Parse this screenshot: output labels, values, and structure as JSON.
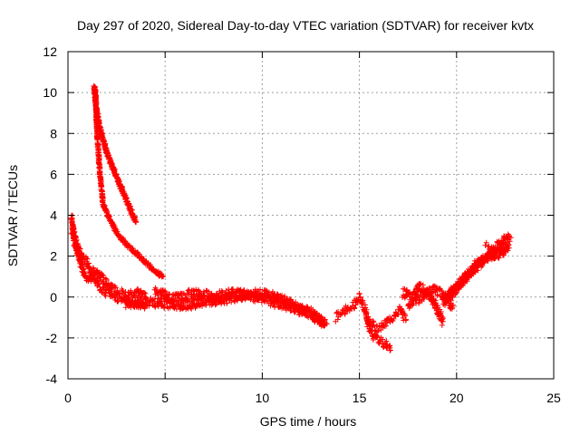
{
  "colors": {
    "series": "#ff0000",
    "grid": "#a0a0a0",
    "frame": "#000000",
    "background": "#ffffff"
  },
  "chart_data": {
    "type": "scatter",
    "title": "Day 297 of 2020, Sidereal Day-to-day VTEC variation (SDTVAR) for receiver kvtx",
    "xlabel": "GPS time / hours",
    "ylabel": "SDTVAR / TECUs",
    "xlim": [
      0,
      25
    ],
    "ylim": [
      -4,
      12
    ],
    "xticks": [
      0,
      5,
      10,
      15,
      20,
      25
    ],
    "yticks": [
      -4,
      -2,
      0,
      2,
      4,
      6,
      8,
      10,
      12
    ],
    "grid": true,
    "marker": "plus",
    "series": [
      {
        "name": "SDTVAR",
        "color": "#ff0000",
        "tracks": [
          {
            "jitter": 0.12,
            "density": 90,
            "points": [
              [
                1.35,
                10.3
              ],
              [
                1.45,
                9.3
              ],
              [
                1.6,
                8.5
              ],
              [
                1.8,
                7.7
              ],
              [
                2.1,
                6.8
              ],
              [
                2.45,
                6.0
              ],
              [
                2.85,
                5.1
              ],
              [
                3.2,
                4.3
              ],
              [
                3.5,
                3.7
              ]
            ]
          },
          {
            "jitter": 0.1,
            "density": 70,
            "points": [
              [
                1.4,
                10.2
              ],
              [
                1.5,
                8.0
              ],
              [
                1.65,
                6.0
              ],
              [
                1.8,
                4.6
              ],
              [
                2.1,
                3.9
              ],
              [
                2.6,
                3.0
              ],
              [
                3.2,
                2.4
              ],
              [
                3.8,
                1.9
              ],
              [
                4.4,
                1.3
              ],
              [
                4.9,
                1.0
              ]
            ]
          },
          {
            "jitter": 0.18,
            "density": 60,
            "points": [
              [
                0.2,
                4.0
              ],
              [
                0.3,
                2.8
              ],
              [
                0.5,
                2.1
              ],
              [
                0.7,
                1.5
              ],
              [
                0.9,
                1.0
              ],
              [
                1.1,
                0.85
              ],
              [
                1.3,
                1.3
              ],
              [
                1.6,
                1.1
              ],
              [
                2.0,
                0.65
              ],
              [
                2.5,
                0.3
              ],
              [
                3.1,
                0.1
              ],
              [
                3.6,
                0.25
              ],
              [
                4.0,
                0.0
              ]
            ]
          },
          {
            "jitter": 0.2,
            "density": 60,
            "points": [
              [
                0.2,
                3.3
              ],
              [
                0.45,
                2.6
              ],
              [
                0.7,
                2.0
              ],
              [
                1.0,
                1.7
              ],
              [
                1.3,
                1.0
              ],
              [
                1.6,
                0.5
              ],
              [
                2.0,
                0.2
              ],
              [
                2.6,
                -0.1
              ],
              [
                3.2,
                -0.3
              ],
              [
                4.0,
                -0.4
              ]
            ]
          },
          {
            "jitter": 0.25,
            "density": 90,
            "points": [
              [
                3.0,
                -0.3
              ],
              [
                4.0,
                -0.2
              ],
              [
                5.0,
                -0.3
              ],
              [
                6.0,
                -0.4
              ],
              [
                7.0,
                -0.2
              ],
              [
                8.0,
                -0.1
              ],
              [
                9.0,
                0.1
              ],
              [
                10.0,
                0.15
              ],
              [
                11.0,
                -0.1
              ],
              [
                12.0,
                -0.6
              ],
              [
                13.0,
                -1.1
              ],
              [
                13.2,
                -1.4
              ]
            ]
          },
          {
            "jitter": 0.25,
            "density": 80,
            "points": [
              [
                4.5,
                0.2
              ],
              [
                5.5,
                -0.1
              ],
              [
                6.5,
                0.2
              ],
              [
                7.5,
                0.0
              ],
              [
                8.5,
                0.2
              ],
              [
                9.5,
                0.0
              ],
              [
                10.5,
                -0.2
              ],
              [
                11.5,
                -0.5
              ],
              [
                12.5,
                -0.8
              ],
              [
                13.3,
                -1.3
              ]
            ]
          },
          {
            "jitter": 0.2,
            "density": 50,
            "points": [
              [
                13.8,
                -1.0
              ],
              [
                14.3,
                -0.6
              ],
              [
                14.7,
                -0.4
              ],
              [
                15.0,
                0.0
              ],
              [
                15.3,
                -0.6
              ],
              [
                15.5,
                -1.5
              ],
              [
                15.8,
                -2.0
              ],
              [
                16.2,
                -2.2
              ],
              [
                16.6,
                -2.6
              ]
            ]
          },
          {
            "jitter": 0.2,
            "density": 45,
            "points": [
              [
                15.4,
                -1.0
              ],
              [
                15.9,
                -1.6
              ],
              [
                16.3,
                -1.3
              ],
              [
                16.7,
                -1.0
              ],
              [
                17.1,
                -0.6
              ],
              [
                17.4,
                -1.1
              ]
            ]
          },
          {
            "jitter": 0.22,
            "density": 70,
            "points": [
              [
                17.2,
                0.2
              ],
              [
                17.7,
                0.0
              ],
              [
                18.1,
                0.5
              ],
              [
                18.6,
                0.1
              ],
              [
                19.0,
                -0.6
              ],
              [
                19.3,
                -1.2
              ]
            ]
          },
          {
            "jitter": 0.22,
            "density": 70,
            "points": [
              [
                17.5,
                -0.4
              ],
              [
                18.2,
                0.0
              ],
              [
                18.8,
                0.4
              ],
              [
                19.4,
                0.1
              ],
              [
                19.8,
                -0.5
              ]
            ]
          },
          {
            "jitter": 0.22,
            "density": 90,
            "points": [
              [
                19.3,
                -0.3
              ],
              [
                20.0,
                0.4
              ],
              [
                20.5,
                1.0
              ],
              [
                21.0,
                1.6
              ],
              [
                21.6,
                2.0
              ],
              [
                22.2,
                2.1
              ],
              [
                22.7,
                2.4
              ]
            ]
          },
          {
            "jitter": 0.22,
            "density": 80,
            "points": [
              [
                19.6,
                0.1
              ],
              [
                20.3,
                0.8
              ],
              [
                20.9,
                1.3
              ],
              [
                21.5,
                1.9
              ],
              [
                22.1,
                2.5
              ],
              [
                22.7,
                3.0
              ]
            ]
          },
          {
            "jitter": 0.15,
            "density": 30,
            "points": [
              [
                21.5,
                2.6
              ],
              [
                22.0,
                2.3
              ],
              [
                22.4,
                2.6
              ],
              [
                22.8,
                2.9
              ]
            ]
          }
        ]
      }
    ]
  }
}
